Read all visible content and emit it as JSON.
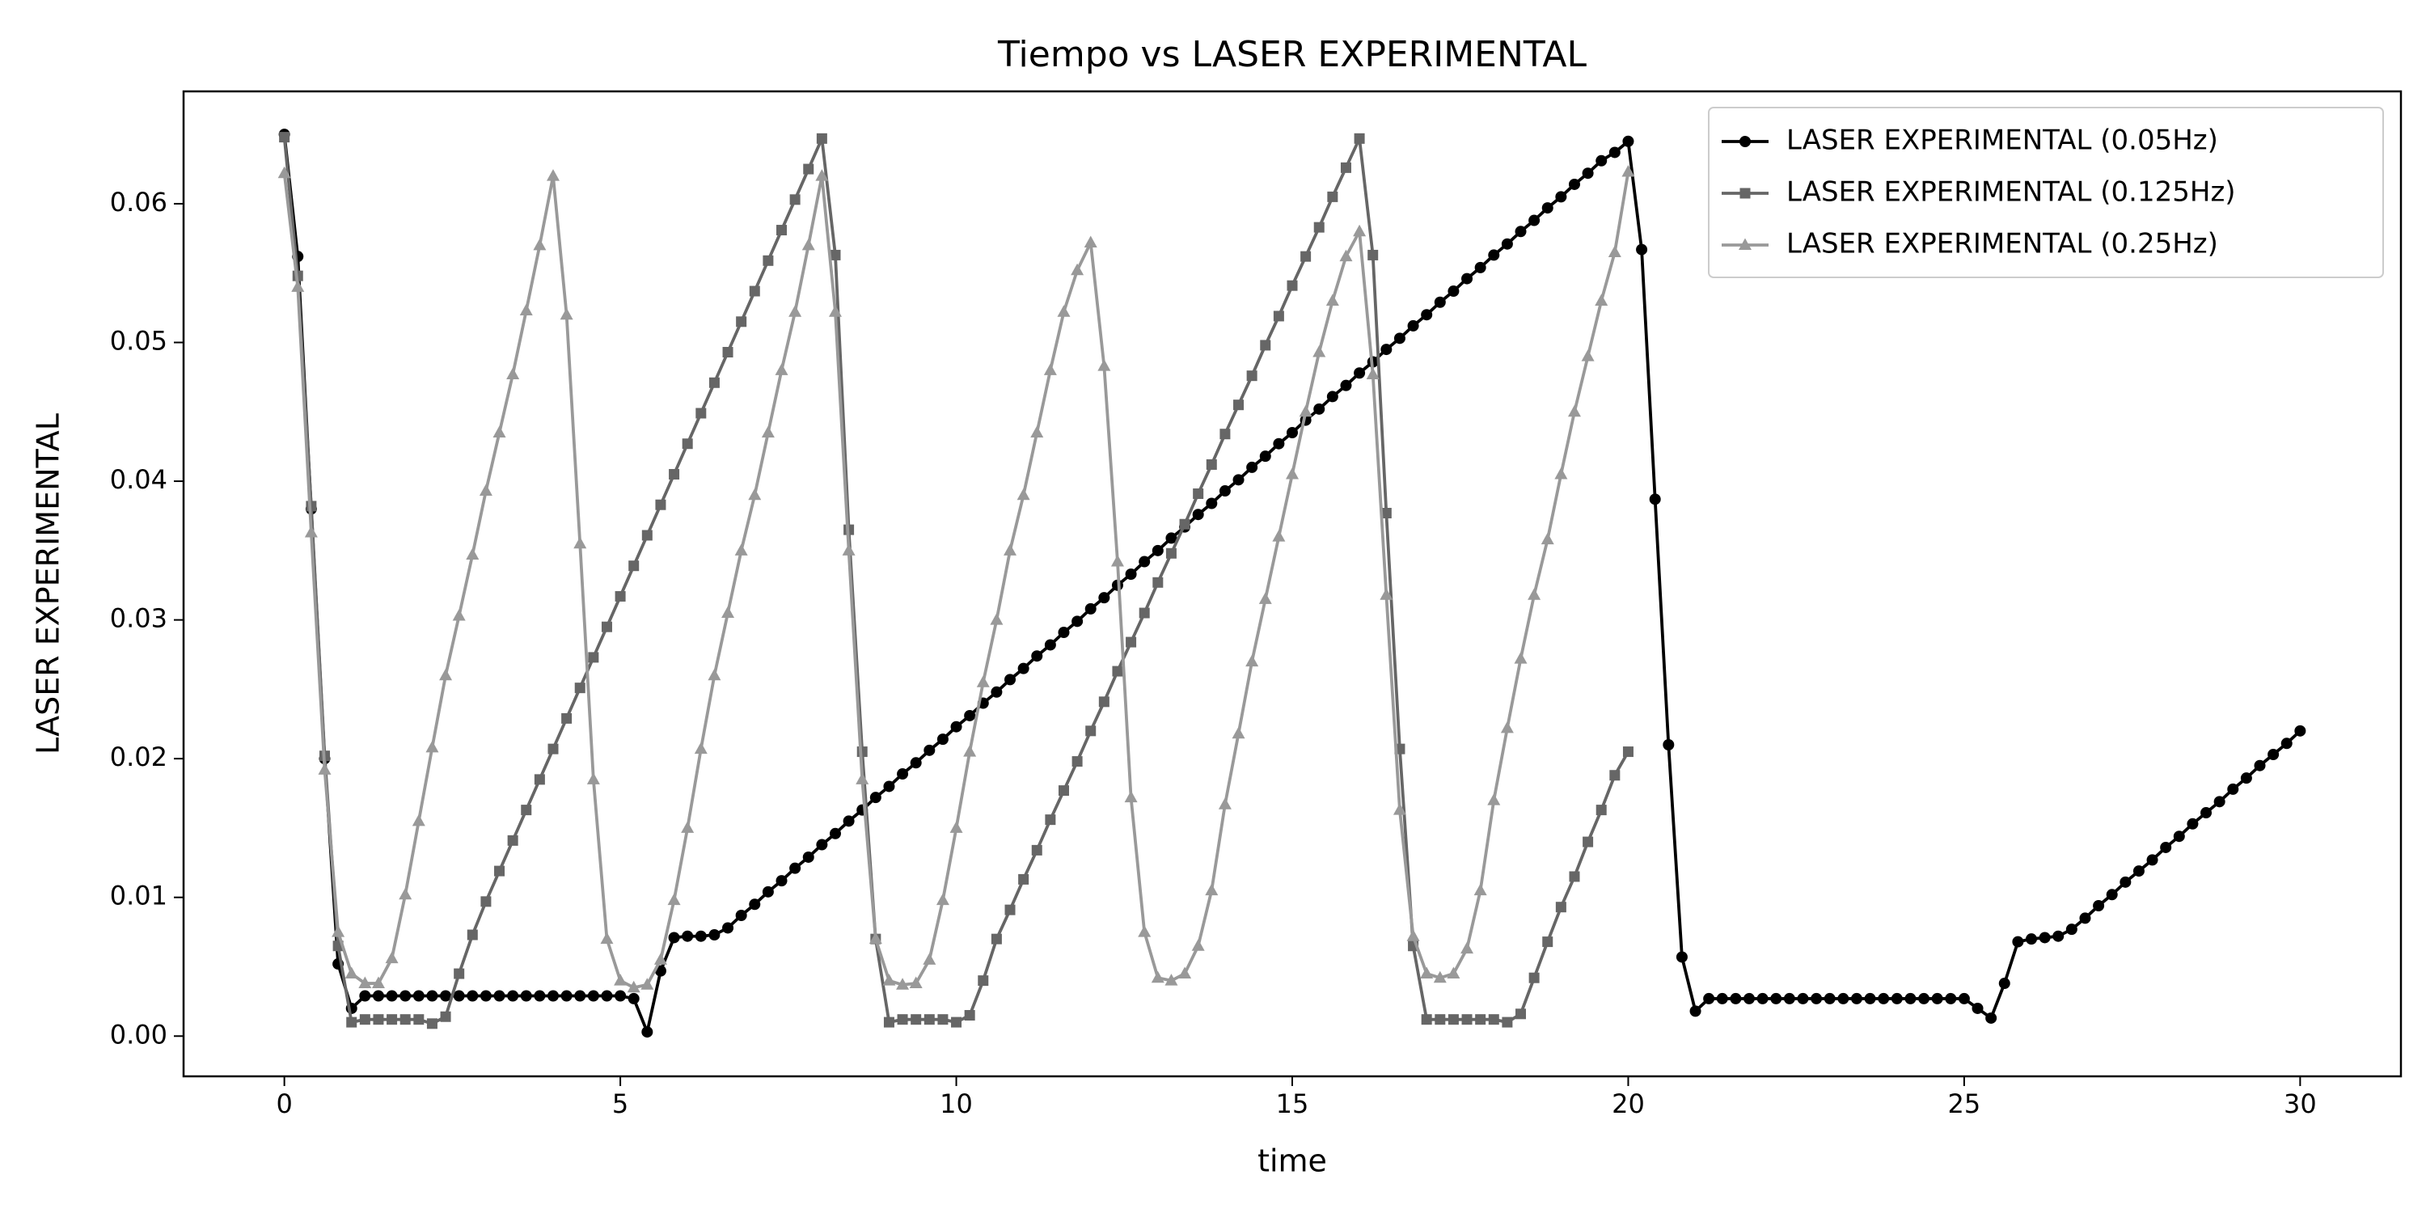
{
  "chart_data": {
    "type": "line",
    "title": "Tiempo vs LASER EXPERIMENTAL",
    "x_label": "time",
    "y_label": "LASER EXPERIMENTAL",
    "xlim": [
      -1.5,
      31.5
    ],
    "ylim": [
      -0.0029,
      0.0681
    ],
    "xticks": [
      0,
      5,
      10,
      15,
      20,
      25,
      30
    ],
    "yticks": [
      {
        "value": 0,
        "label": "0.00"
      },
      {
        "value": 0.01,
        "label": "0.01"
      },
      {
        "value": 0.02,
        "label": "0.02"
      },
      {
        "value": 0.03,
        "label": "0.03"
      },
      {
        "value": 0.04,
        "label": "0.04"
      },
      {
        "value": 0.05,
        "label": "0.05"
      },
      {
        "value": 0.06,
        "label": "0.06"
      }
    ],
    "grid": false,
    "legend": "upper right",
    "x": [
      0,
      0.2,
      0.4,
      0.6,
      0.8,
      1,
      1.2,
      1.4,
      1.6,
      1.8,
      2,
      2.2,
      2.4,
      2.6,
      2.8,
      3,
      3.2,
      3.4,
      3.6,
      3.8,
      4,
      4.2,
      4.4,
      4.6,
      4.8,
      5,
      5.2,
      5.4,
      5.6,
      5.8,
      6,
      6.2,
      6.4,
      6.6,
      6.8,
      7,
      7.2,
      7.4,
      7.6,
      7.8,
      8,
      8.2,
      8.4,
      8.6,
      8.8,
      9,
      9.2,
      9.4,
      9.6,
      9.8,
      10,
      10.2,
      10.4,
      10.6,
      10.8,
      11,
      11.2,
      11.4,
      11.6,
      11.8,
      12,
      12.2,
      12.4,
      12.6,
      12.8,
      13,
      13.2,
      13.4,
      13.6,
      13.8,
      14,
      14.2,
      14.4,
      14.6,
      14.8,
      15,
      15.2,
      15.4,
      15.6,
      15.8,
      16,
      16.2,
      16.4,
      16.6,
      16.8,
      17,
      17.2,
      17.4,
      17.6,
      17.8,
      18,
      18.2,
      18.4,
      18.6,
      18.8,
      19,
      19.2,
      19.4,
      19.6,
      19.8,
      20,
      20.2,
      20.4,
      20.6,
      20.8,
      21,
      21.2,
      21.4,
      21.6,
      21.8,
      22,
      22.2,
      22.4,
      22.6,
      22.8,
      23,
      23.2,
      23.4,
      23.6,
      23.8,
      24,
      24.2,
      24.4,
      24.6,
      24.8,
      25,
      25.2,
      25.4,
      25.6,
      25.8,
      26,
      26.2,
      26.4,
      26.6,
      26.8,
      27,
      27.2,
      27.4,
      27.6,
      27.8,
      28,
      28.2,
      28.4,
      28.6,
      28.8,
      29,
      29.2,
      29.4,
      29.6,
      29.8,
      30
    ],
    "series": [
      {
        "name": "LASER EXPERIMENTAL (0.05Hz)",
        "color": "#000000",
        "marker": "o",
        "values": [
          0.065,
          0.0562,
          0.038,
          0.02,
          0.0052,
          0.002,
          0.0029,
          0.0029,
          0.0029,
          0.0029,
          0.0029,
          0.0029,
          0.0029,
          0.0029,
          0.0029,
          0.0029,
          0.0029,
          0.0029,
          0.0029,
          0.0029,
          0.0029,
          0.0029,
          0.0029,
          0.0029,
          0.0029,
          0.0029,
          0.0027,
          0.0003,
          0.0047,
          0.0071,
          0.0072,
          0.0072,
          0.0073,
          0.0078,
          0.0087,
          0.0095,
          0.0104,
          0.0112,
          0.0121,
          0.0129,
          0.0138,
          0.0146,
          0.0155,
          0.0163,
          0.0172,
          0.018,
          0.0189,
          0.0197,
          0.0206,
          0.0214,
          0.0223,
          0.0231,
          0.024,
          0.0248,
          0.0257,
          0.0265,
          0.0274,
          0.0282,
          0.0291,
          0.0299,
          0.0308,
          0.0316,
          0.0325,
          0.0333,
          0.0342,
          0.035,
          0.0359,
          0.0367,
          0.0376,
          0.0384,
          0.0393,
          0.0401,
          0.041,
          0.0418,
          0.0427,
          0.0435,
          0.0444,
          0.0452,
          0.0461,
          0.0469,
          0.0478,
          0.0486,
          0.0495,
          0.0503,
          0.0512,
          0.052,
          0.0529,
          0.0537,
          0.0546,
          0.0554,
          0.0563,
          0.0571,
          0.058,
          0.0588,
          0.0597,
          0.0605,
          0.0614,
          0.0622,
          0.0631,
          0.0637,
          0.0645,
          0.0567,
          0.0387,
          0.021,
          0.0057,
          0.0018,
          0.0027,
          0.0027,
          0.0027,
          0.0027,
          0.0027,
          0.0027,
          0.0027,
          0.0027,
          0.0027,
          0.0027,
          0.0027,
          0.0027,
          0.0027,
          0.0027,
          0.0027,
          0.0027,
          0.0027,
          0.0027,
          0.0027,
          0.0027,
          0.002,
          0.0013,
          0.0038,
          0.0068,
          0.007,
          0.0071,
          0.0072,
          0.0077,
          0.0085,
          0.0094,
          0.0102,
          0.0111,
          0.0119,
          0.0127,
          0.0136,
          0.0144,
          0.0153,
          0.0161,
          0.0169,
          0.0178,
          0.0186,
          0.0195,
          0.0203,
          0.0211,
          0.022
        ]
      },
      {
        "name": "LASER EXPERIMENTAL (0.125Hz)",
        "color": "#666666",
        "marker": "s",
        "values": [
          0.0648,
          0.0548,
          0.0382,
          0.0202,
          0.0065,
          0.001,
          0.0012,
          0.0012,
          0.0012,
          0.0012,
          0.0012,
          0.0009,
          0.0014,
          0.0045,
          0.0073,
          0.0097,
          0.0119,
          0.0141,
          0.0163,
          0.0185,
          0.0207,
          0.0229,
          0.0251,
          0.0273,
          0.0295,
          0.0317,
          0.0339,
          0.0361,
          0.0383,
          0.0405,
          0.0427,
          0.0449,
          0.0471,
          0.0493,
          0.0515,
          0.0537,
          0.0559,
          0.0581,
          0.0603,
          0.0625,
          0.0647,
          0.0563,
          0.0365,
          0.0205,
          0.007,
          0.001,
          0.0012,
          0.0012,
          0.0012,
          0.0012,
          0.001,
          0.0015,
          0.004,
          0.007,
          0.0091,
          0.0113,
          0.0134,
          0.0156,
          0.0177,
          0.0198,
          0.022,
          0.0241,
          0.0263,
          0.0284,
          0.0305,
          0.0327,
          0.0348,
          0.0369,
          0.0391,
          0.0412,
          0.0434,
          0.0455,
          0.0476,
          0.0498,
          0.0519,
          0.0541,
          0.0562,
          0.0583,
          0.0605,
          0.0626,
          0.0647,
          0.0563,
          0.0377,
          0.0207,
          0.0065,
          0.0012,
          0.0012,
          0.0012,
          0.0012,
          0.0012,
          0.0012,
          0.001,
          0.0016,
          0.0042,
          0.0068,
          0.0093,
          0.0115,
          0.014,
          0.0163,
          0.0188,
          0.0205,
          null,
          null,
          null,
          null,
          null,
          null,
          null,
          null,
          null,
          null,
          null,
          null,
          null,
          null,
          null,
          null,
          null,
          null,
          null,
          null,
          null,
          null,
          null,
          null,
          null,
          null,
          null,
          null,
          null,
          null,
          null,
          null,
          null,
          null,
          null,
          null,
          null,
          null,
          null,
          null,
          null,
          null,
          null,
          null,
          null,
          null,
          null,
          null,
          null,
          null
        ]
      },
      {
        "name": "LASER EXPERIMENTAL (0.25Hz)",
        "color": "#999999",
        "marker": "^",
        "values": [
          0.0622,
          0.054,
          0.0363,
          0.0192,
          0.0075,
          0.0045,
          0.0038,
          0.0038,
          0.0056,
          0.0102,
          0.0155,
          0.0208,
          0.026,
          0.0303,
          0.0347,
          0.0393,
          0.0435,
          0.0477,
          0.0523,
          0.057,
          0.062,
          0.052,
          0.0355,
          0.0185,
          0.007,
          0.004,
          0.0035,
          0.0037,
          0.0055,
          0.0098,
          0.015,
          0.0207,
          0.026,
          0.0305,
          0.035,
          0.039,
          0.0435,
          0.048,
          0.0522,
          0.057,
          0.062,
          0.0522,
          0.035,
          0.0185,
          0.007,
          0.004,
          0.0037,
          0.0038,
          0.0055,
          0.0098,
          0.015,
          0.0205,
          0.0255,
          0.03,
          0.035,
          0.039,
          0.0435,
          0.048,
          0.0522,
          0.0552,
          0.0572,
          0.0483,
          0.0342,
          0.0172,
          0.0075,
          0.0042,
          0.004,
          0.0045,
          0.0065,
          0.0105,
          0.0167,
          0.0218,
          0.027,
          0.0315,
          0.036,
          0.0405,
          0.045,
          0.0493,
          0.053,
          0.0562,
          0.058,
          0.0477,
          0.0318,
          0.0163,
          0.0072,
          0.0045,
          0.0042,
          0.0045,
          0.0063,
          0.0105,
          0.017,
          0.0222,
          0.0272,
          0.0318,
          0.0358,
          0.0405,
          0.045,
          0.049,
          0.053,
          0.0565,
          0.0623,
          null,
          null,
          null,
          null,
          null,
          null,
          null,
          null,
          null,
          null,
          null,
          null,
          null,
          null,
          null,
          null,
          null,
          null,
          null,
          null,
          null,
          null,
          null,
          null,
          null,
          null,
          null,
          null,
          null,
          null,
          null,
          null,
          null,
          null,
          null,
          null,
          null,
          null,
          null,
          null,
          null,
          null,
          null,
          null,
          null,
          null,
          null,
          null,
          null,
          null
        ]
      }
    ]
  }
}
